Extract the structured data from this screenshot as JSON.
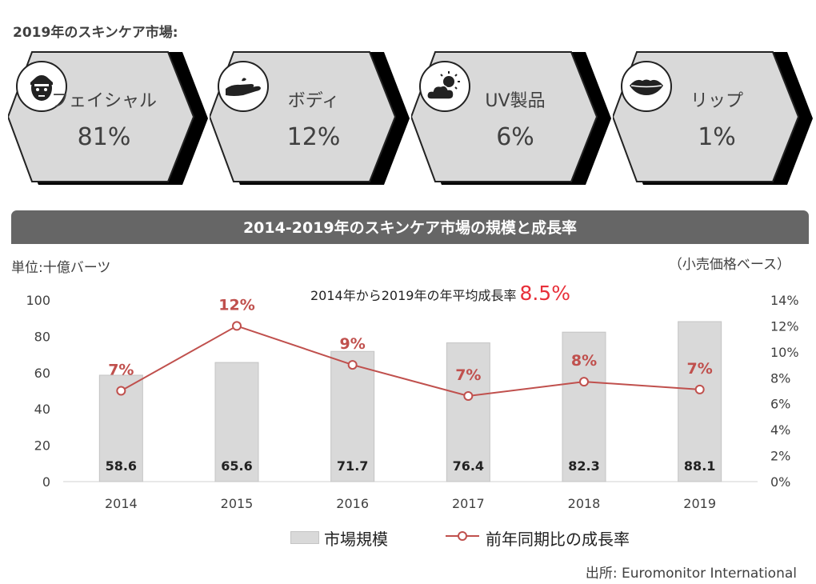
{
  "header": {
    "title": "2019年のスキンケア市場:"
  },
  "categories": [
    {
      "label": "フェイシャル",
      "value": "81%",
      "icon": "face-mask-icon"
    },
    {
      "label": "ボディ",
      "value": "12%",
      "icon": "hand-icon"
    },
    {
      "label": "UV製品",
      "value": "6%",
      "icon": "sun-cloud-icon"
    },
    {
      "label": "リップ",
      "value": "1%",
      "icon": "lips-icon"
    }
  ],
  "colors": {
    "card_fill": "#d9d9d9",
    "card_shadow": "#000000",
    "banner": "#666666",
    "line": "#c0504d",
    "bar": "#d9d9d9",
    "cagr": "#e8303a"
  },
  "chart_title": "2014-2019年のスキンケア市場の規模と成長率",
  "unit_label": "単位:十億バーツ",
  "basis_label": "（小売価格ベース）",
  "cagr": {
    "text": "2014年から2019年の年平均成長率",
    "value": "8.5%"
  },
  "chart_data": {
    "type": "bar",
    "categories": [
      "2014",
      "2015",
      "2016",
      "2017",
      "2018",
      "2019"
    ],
    "series": [
      {
        "name": "市場規模",
        "type": "bar",
        "axis": "left",
        "values": [
          58.6,
          65.6,
          71.7,
          76.4,
          82.3,
          88.1
        ],
        "labels": [
          "58.6",
          "65.6",
          "71.7",
          "76.4",
          "82.3",
          "88.1"
        ]
      },
      {
        "name": "前年同期比の成長率",
        "type": "line",
        "axis": "right",
        "values": [
          7,
          12,
          9,
          6.6,
          7.7,
          7.1
        ],
        "labels": [
          "7%",
          "12%",
          "9%",
          "7%",
          "8%",
          "7%"
        ]
      }
    ],
    "ylim": [
      0,
      100
    ],
    "y_ticks": [
      "0",
      "20",
      "40",
      "60",
      "80",
      "100"
    ],
    "y2lim": [
      0,
      14
    ],
    "y2_ticks": [
      "0%",
      "2%",
      "4%",
      "6%",
      "8%",
      "10%",
      "12%",
      "14%"
    ],
    "grid": false,
    "legend": "bottom"
  },
  "legend": {
    "bar_label": "市場規模",
    "line_label": "前年同期比の成長率"
  },
  "source": "出所: Euromonitor International"
}
